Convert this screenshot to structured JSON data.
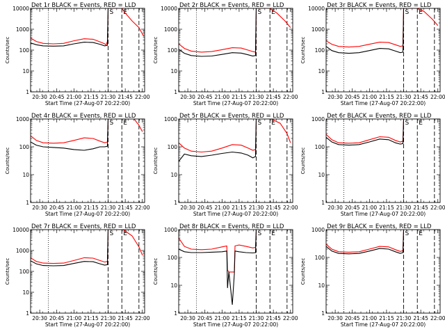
{
  "chart_data": [
    {
      "type": "line",
      "title": "Det 1r BLACK = Events, RED = LLD",
      "xlabel": "Start Time (27-Aug-07 20:22:00)",
      "ylabel": "Counts/sec",
      "xlim": [
        20.367,
        22.033
      ],
      "ylim": [
        1,
        10000
      ],
      "yscale": "log",
      "xticks": [
        20.5,
        20.75,
        21.0,
        21.25,
        21.5,
        21.75,
        22.0
      ],
      "xtick_labels": [
        "20:30",
        "20:45",
        "21:00",
        "21:15",
        "21:30",
        "21:45",
        "22:00"
      ],
      "yticks": [
        1,
        10,
        100,
        1000,
        10000
      ],
      "ytick_labels": [
        "1",
        "10",
        "100",
        "1000",
        "10000"
      ],
      "markers": [
        {
          "x": 21.5,
          "label": "S"
        },
        {
          "x": 21.7,
          "label": "E"
        }
      ],
      "series": [
        {
          "color": "#ff0000",
          "x": [
            20.367,
            20.45,
            20.55,
            20.7,
            20.85,
            21.0,
            21.15,
            21.28,
            21.38,
            21.45,
            21.47,
            21.49,
            21.5,
            21.7,
            21.75,
            21.85,
            21.95,
            22.0,
            22.02
          ],
          "y": [
            380,
            260,
            210,
            200,
            210,
            280,
            350,
            330,
            250,
            200,
            180,
            260,
            10000,
            10000,
            6000,
            2500,
            1200,
            600,
            450
          ]
        },
        {
          "color": "#000000",
          "x": [
            20.367,
            20.45,
            20.55,
            20.7,
            20.85,
            21.0,
            21.15,
            21.28,
            21.38,
            21.45,
            21.49,
            21.5
          ],
          "y": [
            220,
            180,
            160,
            155,
            160,
            200,
            240,
            230,
            190,
            160,
            170,
            10000
          ]
        }
      ]
    },
    {
      "type": "line",
      "title": "Det 2r BLACK = Events, RED = LLD",
      "xlabel": "Start Time (27-Aug-07 20:22:00)",
      "ylabel": "Counts/sec",
      "xlim": [
        20.367,
        22.033
      ],
      "ylim": [
        1,
        10000
      ],
      "yscale": "log",
      "xticks": [
        20.5,
        20.75,
        21.0,
        21.25,
        21.5,
        21.75,
        22.0
      ],
      "xtick_labels": [
        "20:30",
        "20:45",
        "21:00",
        "21:15",
        "21:30",
        "21:45",
        "22:00"
      ],
      "yticks": [
        1,
        10,
        100,
        1000,
        10000
      ],
      "ytick_labels": [
        "1",
        "10",
        "100",
        "1000",
        "10000"
      ],
      "markers": [
        {
          "x": 21.5,
          "label": "S"
        },
        {
          "x": 21.7,
          "label": "E"
        }
      ],
      "series": [
        {
          "color": "#ff0000",
          "x": [
            20.367,
            20.45,
            20.55,
            20.7,
            20.85,
            21.0,
            21.15,
            21.28,
            21.38,
            21.45,
            21.49,
            21.5,
            21.7,
            21.8,
            21.92,
            22.0
          ],
          "y": [
            200,
            120,
            90,
            80,
            85,
            105,
            130,
            125,
            100,
            85,
            80,
            10000,
            10000,
            6000,
            2500,
            1200
          ]
        },
        {
          "color": "#000000",
          "x": [
            20.367,
            20.45,
            20.55,
            20.7,
            20.85,
            21.0,
            21.15,
            21.28,
            21.38,
            21.45,
            21.49,
            21.5
          ],
          "y": [
            110,
            70,
            55,
            50,
            52,
            62,
            75,
            72,
            60,
            52,
            55,
            10000
          ]
        }
      ]
    },
    {
      "type": "line",
      "title": "Det 3r BLACK = Events, RED = LLD",
      "xlabel": "Start Time (27-Aug-07 20:22:00)",
      "ylabel": "Counts/sec",
      "xlim": [
        20.367,
        22.033
      ],
      "ylim": [
        1,
        10000
      ],
      "yscale": "log",
      "xticks": [
        20.5,
        20.75,
        21.0,
        21.25,
        21.5,
        21.75,
        22.0
      ],
      "xtick_labels": [
        "20:30",
        "20:45",
        "21:00",
        "21:15",
        "21:30",
        "21:45",
        "22:00"
      ],
      "yticks": [
        1,
        10,
        100,
        1000,
        10000
      ],
      "ytick_labels": [
        "1",
        "10",
        "100",
        "1000",
        "10000"
      ],
      "markers": [
        {
          "x": 21.5,
          "label": "S"
        },
        {
          "x": 21.7,
          "label": "E"
        }
      ],
      "series": [
        {
          "color": "#ff0000",
          "x": [
            20.367,
            20.45,
            20.55,
            20.7,
            20.85,
            21.0,
            21.15,
            21.28,
            21.38,
            21.45,
            21.49,
            21.5,
            21.7,
            21.8,
            21.92,
            22.0
          ],
          "y": [
            280,
            190,
            150,
            140,
            150,
            190,
            240,
            230,
            180,
            150,
            160,
            10000,
            10000,
            7000,
            3000,
            1500
          ]
        },
        {
          "color": "#000000",
          "x": [
            20.367,
            20.45,
            20.55,
            20.7,
            20.85,
            21.0,
            21.15,
            21.28,
            21.38,
            21.45,
            21.49,
            21.5
          ],
          "y": [
            150,
            95,
            75,
            70,
            75,
            95,
            120,
            115,
            90,
            75,
            80,
            10000
          ]
        }
      ]
    },
    {
      "type": "line",
      "title": "Det 4r BLACK = Events, RED = LLD",
      "xlabel": "Start Time (27-Aug-07 20:22:00)",
      "ylabel": "Counts/sec",
      "xlim": [
        20.367,
        22.033
      ],
      "ylim": [
        1,
        1000
      ],
      "yscale": "log",
      "xticks": [
        20.5,
        20.75,
        21.0,
        21.25,
        21.5,
        21.75,
        22.0
      ],
      "xtick_labels": [
        "20:30",
        "20:45",
        "21:00",
        "21:15",
        "21:30",
        "21:45",
        "22:00"
      ],
      "yticks": [
        1,
        10,
        100,
        1000
      ],
      "ytick_labels": [
        "1",
        "10",
        "100",
        "1000"
      ],
      "markers": [
        {
          "x": 21.5,
          "label": "S"
        },
        {
          "x": 21.7,
          "label": "E"
        }
      ],
      "series": [
        {
          "color": "#ff0000",
          "x": [
            20.367,
            20.45,
            20.55,
            20.7,
            20.85,
            21.0,
            21.15,
            21.28,
            21.38,
            21.45,
            21.49,
            21.5,
            21.88,
            21.95,
            22.0
          ],
          "y": [
            250,
            170,
            140,
            135,
            140,
            170,
            210,
            200,
            160,
            140,
            150,
            1000,
            1000,
            600,
            350
          ]
        },
        {
          "color": "#000000",
          "x": [
            20.367,
            20.45,
            20.55,
            20.7,
            20.85,
            21.0,
            21.15,
            21.28,
            21.38,
            21.45,
            21.49,
            21.5
          ],
          "y": [
            150,
            115,
            100,
            95,
            90,
            80,
            75,
            85,
            100,
            100,
            105,
            1000
          ]
        }
      ]
    },
    {
      "type": "line",
      "title": "Det 5r BLACK = Events, RED = LLD",
      "xlabel": "Start Time (27-Aug-07 20:22:00)",
      "ylabel": "Counts/sec",
      "xlim": [
        20.367,
        22.033
      ],
      "ylim": [
        1,
        1000
      ],
      "yscale": "log",
      "xticks": [
        20.5,
        20.75,
        21.0,
        21.25,
        21.5,
        21.75,
        22.0
      ],
      "xtick_labels": [
        "20:30",
        "20:45",
        "21:00",
        "21:15",
        "21:30",
        "21:45",
        "22:00"
      ],
      "yticks": [
        1,
        10,
        100,
        1000
      ],
      "ytick_labels": [
        "1",
        "10",
        "100",
        "1000"
      ],
      "markers": [
        {
          "x": 21.5,
          "label": "S"
        },
        {
          "x": 21.7,
          "label": "E"
        }
      ],
      "series": [
        {
          "color": "#ff0000",
          "x": [
            20.367,
            20.45,
            20.55,
            20.7,
            20.85,
            21.0,
            21.15,
            21.28,
            21.38,
            21.45,
            21.49,
            21.5,
            21.72,
            21.85,
            21.95,
            22.0
          ],
          "y": [
            140,
            90,
            70,
            65,
            70,
            90,
            120,
            115,
            90,
            75,
            80,
            1000,
            1000,
            700,
            300,
            140
          ]
        },
        {
          "color": "#000000",
          "x": [
            20.367,
            20.45,
            20.55,
            20.7,
            20.85,
            21.0,
            21.15,
            21.28,
            21.38,
            21.45,
            21.49,
            21.5
          ],
          "y": [
            30,
            55,
            48,
            45,
            50,
            58,
            65,
            60,
            50,
            40,
            45,
            1000
          ]
        }
      ]
    },
    {
      "type": "line",
      "title": "Det 6r BLACK = Events, RED = LLD",
      "xlabel": "Start Time (27-Aug-07 20:22:00)",
      "ylabel": "Counts/sec",
      "xlim": [
        20.367,
        22.033
      ],
      "ylim": [
        1,
        1000
      ],
      "yscale": "log",
      "xticks": [
        20.5,
        20.75,
        21.0,
        21.25,
        21.5,
        21.75,
        22.0
      ],
      "xtick_labels": [
        "20:30",
        "20:45",
        "21:00",
        "21:15",
        "21:30",
        "21:45",
        "22:00"
      ],
      "yticks": [
        1,
        10,
        100,
        1000
      ],
      "ytick_labels": [
        "1",
        "10",
        "100",
        "1000"
      ],
      "markers": [
        {
          "x": 21.5,
          "label": "S"
        },
        {
          "x": 21.7,
          "label": "E"
        }
      ],
      "series": [
        {
          "color": "#ff0000",
          "x": [
            20.367,
            20.45,
            20.55,
            20.7,
            20.85,
            21.0,
            21.15,
            21.28,
            21.38,
            21.45,
            21.49,
            21.5
          ],
          "y": [
            280,
            180,
            140,
            135,
            140,
            180,
            230,
            220,
            170,
            150,
            160,
            1000
          ]
        },
        {
          "color": "#000000",
          "x": [
            20.367,
            20.45,
            20.55,
            20.7,
            20.85,
            21.0,
            21.15,
            21.28,
            21.38,
            21.45,
            21.49,
            21.5
          ],
          "y": [
            220,
            150,
            120,
            115,
            120,
            150,
            190,
            180,
            140,
            125,
            130,
            1000
          ]
        }
      ]
    },
    {
      "type": "line",
      "title": "Det 7r BLACK = Events, RED = LLD",
      "xlabel": "Start Time (27-Aug-07 20:22:00)",
      "ylabel": "Counts/sec",
      "xlim": [
        20.367,
        22.033
      ],
      "ylim": [
        1,
        10000
      ],
      "yscale": "log",
      "xticks": [
        20.5,
        20.75,
        21.0,
        21.25,
        21.5,
        21.75,
        22.0
      ],
      "xtick_labels": [
        "20:30",
        "20:45",
        "21:00",
        "21:15",
        "21:30",
        "21:45",
        "22:00"
      ],
      "yticks": [
        1,
        10,
        100,
        1000,
        10000
      ],
      "ytick_labels": [
        "1",
        "10",
        "100",
        "1000",
        "10000"
      ],
      "markers": [
        {
          "x": 21.5,
          "label": "S"
        },
        {
          "x": 21.7,
          "label": "E"
        }
      ],
      "series": [
        {
          "color": "#ff0000",
          "x": [
            20.367,
            20.45,
            20.55,
            20.7,
            20.85,
            21.0,
            21.15,
            21.28,
            21.38,
            21.45,
            21.49,
            21.5,
            21.72,
            21.85,
            21.95,
            22.0
          ],
          "y": [
            450,
            300,
            250,
            240,
            250,
            330,
            450,
            430,
            330,
            280,
            300,
            10000,
            10000,
            5000,
            1500,
            600
          ]
        },
        {
          "color": "#000000",
          "x": [
            20.367,
            20.45,
            20.55,
            20.7,
            20.85,
            21.0,
            21.15,
            21.28,
            21.38,
            21.45,
            21.49,
            21.5
          ],
          "y": [
            320,
            230,
            190,
            185,
            190,
            240,
            300,
            290,
            230,
            200,
            210,
            10000
          ]
        }
      ]
    },
    {
      "type": "line",
      "title": "Det 8r BLACK = Events, RED = LLD",
      "xlabel": "Start Time (27-Aug-07 20:22:00)",
      "ylabel": "Counts/sec",
      "xlim": [
        20.367,
        22.033
      ],
      "ylim": [
        1,
        1000
      ],
      "yscale": "log",
      "xticks": [
        20.5,
        20.75,
        21.0,
        21.25,
        21.5,
        21.75,
        22.0
      ],
      "xtick_labels": [
        "20:30",
        "20:45",
        "21:00",
        "21:15",
        "21:30",
        "21:45",
        "22:00"
      ],
      "yticks": [
        1,
        10,
        100,
        1000
      ],
      "ytick_labels": [
        "1",
        "10",
        "100",
        "1000"
      ],
      "markers": [
        {
          "x": 21.5,
          "label": "S"
        },
        {
          "x": 21.7,
          "label": "E"
        }
      ],
      "series": [
        {
          "color": "#ff0000",
          "x": [
            20.367,
            20.45,
            20.55,
            20.7,
            20.85,
            21.0,
            21.07,
            21.08,
            21.1,
            21.18,
            21.19,
            21.25,
            21.35,
            21.45,
            21.49,
            21.5
          ],
          "y": [
            500,
            250,
            200,
            190,
            200,
            240,
            260,
            35,
            30,
            30,
            260,
            280,
            250,
            220,
            230,
            1000
          ]
        },
        {
          "color": "#000000",
          "x": [
            20.367,
            20.45,
            20.55,
            20.7,
            20.85,
            21.0,
            21.07,
            21.08,
            21.1,
            21.15,
            21.18,
            21.19,
            21.25,
            21.35,
            21.45,
            21.49,
            21.5
          ],
          "y": [
            200,
            160,
            150,
            150,
            155,
            160,
            170,
            8,
            30,
            2,
            25,
            170,
            160,
            150,
            145,
            150,
            1000
          ]
        }
      ]
    },
    {
      "type": "line",
      "title": "Det 9r BLACK = Events, RED = LLD",
      "xlabel": "Start Time (27-Aug-07 20:22:00)",
      "ylabel": "Counts/sec",
      "xlim": [
        20.367,
        22.033
      ],
      "ylim": [
        1,
        1000
      ],
      "yscale": "log",
      "xticks": [
        20.5,
        20.75,
        21.0,
        21.25,
        21.5,
        21.75,
        22.0
      ],
      "xtick_labels": [
        "20:30",
        "20:45",
        "21:00",
        "21:15",
        "21:30",
        "21:45",
        "22:00"
      ],
      "yticks": [
        1,
        10,
        100,
        1000
      ],
      "ytick_labels": [
        "1",
        "10",
        "100",
        "1000"
      ],
      "markers": [
        {
          "x": 21.5,
          "label": "S"
        },
        {
          "x": 21.7,
          "label": "E"
        }
      ],
      "series": [
        {
          "color": "#ff0000",
          "x": [
            20.367,
            20.45,
            20.55,
            20.7,
            20.85,
            21.0,
            21.15,
            21.28,
            21.38,
            21.45,
            21.49,
            21.5
          ],
          "y": [
            300,
            200,
            160,
            155,
            160,
            200,
            250,
            240,
            190,
            165,
            175,
            1000
          ]
        },
        {
          "color": "#000000",
          "x": [
            20.367,
            20.45,
            20.55,
            20.7,
            20.85,
            21.0,
            21.15,
            21.28,
            21.38,
            21.45,
            21.49,
            21.5
          ],
          "y": [
            250,
            170,
            140,
            135,
            140,
            170,
            210,
            200,
            160,
            140,
            150,
            1000
          ]
        }
      ]
    }
  ]
}
